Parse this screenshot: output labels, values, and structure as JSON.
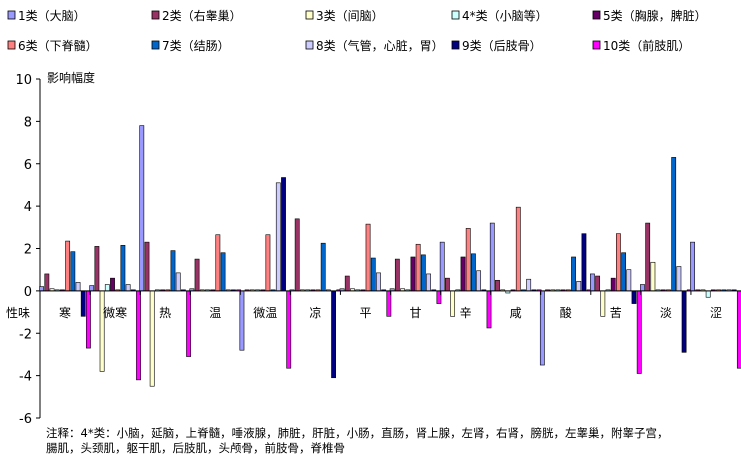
{
  "chart_data": {
    "type": "bar",
    "ylabel": "影响幅度",
    "category_axis_title": "性味",
    "ylim": [
      -6,
      10
    ],
    "yticks": [
      -6,
      -4,
      -2,
      0,
      2,
      4,
      6,
      8,
      10
    ],
    "legend_position": "top",
    "categories": [
      "寒",
      "微寒",
      "热",
      "温",
      "微温",
      "凉",
      "平",
      "甘",
      "辛",
      "咸",
      "酸",
      "苦",
      "淡",
      "涩"
    ],
    "series": [
      {
        "name": "1类（大脑）",
        "color": "#9999ff",
        "values": [
          0.2,
          0.25,
          7.8,
          0.1,
          -2.8,
          0.05,
          0.1,
          0.1,
          2.3,
          3.2,
          -3.5,
          0.8,
          0.3,
          2.3
        ]
      },
      {
        "name": "2类（右睾巢）",
        "color": "#993366",
        "values": [
          0.8,
          2.1,
          2.3,
          1.5,
          0.05,
          3.4,
          0.7,
          1.5,
          0.6,
          0.5,
          0.05,
          0.7,
          3.2,
          0.05
        ]
      },
      {
        "name": "3类（间脑）",
        "color": "#ffffcc",
        "values": [
          0.1,
          -3.8,
          -4.5,
          0.05,
          0.05,
          0.05,
          0.1,
          0.1,
          -1.2,
          0.05,
          0.05,
          -1.2,
          1.35,
          0.05
        ]
      },
      {
        "name": "4*类（小脑等）",
        "color": "#ccffff",
        "values": [
          0.05,
          0.3,
          0.05,
          0.05,
          0.05,
          0.05,
          0.05,
          0.05,
          0.05,
          -0.1,
          0.05,
          0.05,
          0.05,
          -0.3
        ]
      },
      {
        "name": "5类（胸腺，脾脏）",
        "color": "#660066",
        "values": [
          0.05,
          0.6,
          0.05,
          0.05,
          0.05,
          0.05,
          0.05,
          1.6,
          1.6,
          0.05,
          0.05,
          0.6,
          0.05,
          0.05
        ]
      },
      {
        "name": "6类（下脊髓）",
        "color": "#ff8080",
        "values": [
          2.35,
          0.05,
          0.05,
          2.65,
          2.65,
          0.05,
          3.15,
          2.2,
          2.95,
          3.95,
          0.05,
          2.7,
          0.05,
          0.05
        ]
      },
      {
        "name": "7类（结肠）",
        "color": "#0066cc",
        "values": [
          1.85,
          2.15,
          1.9,
          1.8,
          0.05,
          2.25,
          1.55,
          1.7,
          1.75,
          0.05,
          1.6,
          1.8,
          6.3,
          0.05
        ]
      },
      {
        "name": "8类（气管，心脏，胃）",
        "color": "#ccccff",
        "values": [
          0.4,
          0.3,
          0.85,
          0.05,
          5.1,
          0.05,
          0.85,
          0.8,
          0.95,
          0.55,
          0.45,
          1.0,
          1.15,
          0.05
        ]
      },
      {
        "name": "9类（后肢骨）",
        "color": "#000080",
        "values": [
          -1.2,
          0.05,
          0.05,
          0.05,
          5.35,
          -4.1,
          0.05,
          0.05,
          0.05,
          0.05,
          2.7,
          -0.6,
          -2.9,
          0.05
        ]
      },
      {
        "name": "10类（前肢肌）",
        "color": "#ff00ff",
        "values": [
          -2.7,
          -4.2,
          -3.1,
          0.05,
          -3.65,
          0.05,
          -1.2,
          -0.6,
          -1.75,
          0.05,
          0.05,
          -3.9,
          0.05,
          -3.65
        ]
      }
    ]
  },
  "note": {
    "line1": "注释：4*类：小脑，延脑，上脊髓，唾液腺，肺脏，肝脏，小肠，直肠，肾上腺，左肾，右肾，膀胱，左睾巢，附睾子宫，",
    "line2": "腸肌，头颈肌，躯干肌，后肢肌，头颅骨，前肢骨，脊椎骨"
  }
}
